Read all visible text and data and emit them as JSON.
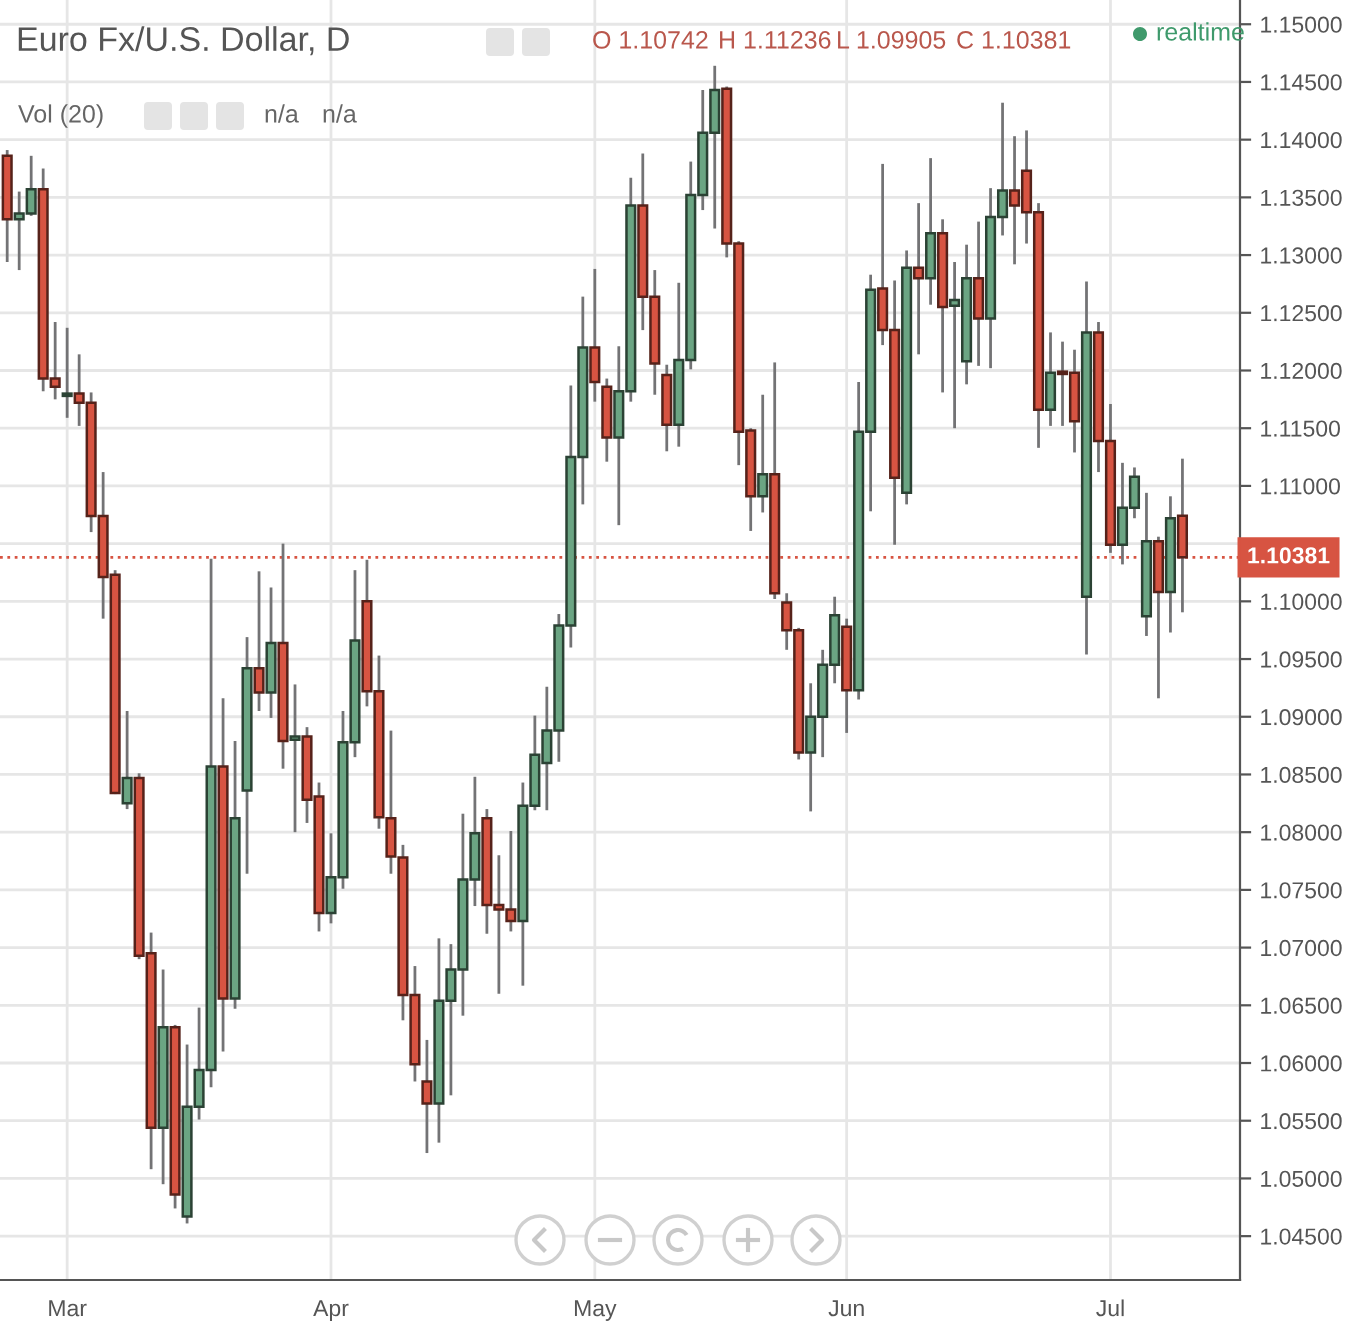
{
  "chart_data": {
    "type": "candlestick",
    "title": "Euro Fx/U.S. Dollar, D",
    "categories": [
      null,
      null,
      null,
      null,
      null,
      "Mar",
      null,
      null,
      null,
      null,
      null,
      null,
      null,
      null,
      null,
      null,
      null,
      null,
      null,
      null,
      null,
      null,
      null,
      null,
      null,
      null,
      null,
      "Apr",
      null,
      null,
      null,
      null,
      null,
      null,
      null,
      null,
      null,
      null,
      null,
      null,
      null,
      null,
      null,
      null,
      null,
      null,
      null,
      null,
      null,
      "May",
      null,
      null,
      null,
      null,
      null,
      null,
      null,
      null,
      null,
      null,
      null,
      null,
      null,
      null,
      null,
      null,
      null,
      null,
      null,
      null,
      "Jun",
      null,
      null,
      null,
      null,
      null,
      null,
      null,
      null,
      null,
      null,
      null,
      null,
      null,
      null,
      null,
      null,
      null,
      null,
      null,
      null,
      null,
      "Jul",
      null,
      null,
      null,
      null,
      null,
      null
    ],
    "ohlc": [
      [
        1.1386,
        1.1391,
        1.1294,
        1.1331
      ],
      [
        1.1331,
        1.1355,
        1.1287,
        1.1336
      ],
      [
        1.1336,
        1.1386,
        1.1334,
        1.1357
      ],
      [
        1.1357,
        1.1375,
        1.1182,
        1.1193
      ],
      [
        1.1193,
        1.1242,
        1.1175,
        1.1186
      ],
      [
        1.1178,
        1.1237,
        1.1159,
        1.118
      ],
      [
        1.118,
        1.1214,
        1.1152,
        1.1172
      ],
      [
        1.1172,
        1.1181,
        1.106,
        1.1074
      ],
      [
        1.1074,
        1.1112,
        1.0985,
        1.1021
      ],
      [
        1.1023,
        1.1027,
        1.0833,
        1.0834
      ],
      [
        1.0825,
        1.0905,
        1.082,
        1.0847
      ],
      [
        1.0847,
        1.0851,
        1.069,
        1.0693
      ],
      [
        1.0695,
        1.0713,
        1.0508,
        1.0544
      ],
      [
        1.0544,
        1.0681,
        1.0495,
        1.0631
      ],
      [
        1.0631,
        1.0633,
        1.0474,
        1.0486
      ],
      [
        1.0467,
        1.0616,
        1.0461,
        1.0562
      ],
      [
        1.0562,
        1.0648,
        1.0551,
        1.0594
      ],
      [
        1.0594,
        1.1037,
        1.0579,
        1.0857
      ],
      [
        1.0857,
        1.0916,
        1.061,
        1.0656
      ],
      [
        1.0656,
        1.0879,
        1.0647,
        1.0812
      ],
      [
        1.0836,
        1.0969,
        1.0764,
        1.0942
      ],
      [
        1.0942,
        1.1026,
        1.0905,
        1.0921
      ],
      [
        1.0921,
        1.1012,
        1.0899,
        1.0964
      ],
      [
        1.0964,
        1.105,
        1.0855,
        1.0879
      ],
      [
        1.088,
        1.0928,
        1.08,
        1.0883
      ],
      [
        1.0883,
        1.0891,
        1.0808,
        1.0828
      ],
      [
        1.0831,
        1.0843,
        1.0714,
        1.073
      ],
      [
        1.073,
        1.0799,
        1.0721,
        1.0761
      ],
      [
        1.0761,
        1.0905,
        1.0751,
        1.0878
      ],
      [
        1.0878,
        1.1027,
        1.0865,
        1.0966
      ],
      [
        1.1,
        1.1036,
        1.0909,
        1.0922
      ],
      [
        1.0922,
        1.0953,
        1.0803,
        1.0813
      ],
      [
        1.0812,
        1.0888,
        1.0764,
        1.0779
      ],
      [
        1.0778,
        1.0789,
        1.0637,
        1.0659
      ],
      [
        1.0659,
        1.0684,
        1.0584,
        1.0599
      ],
      [
        1.0584,
        1.062,
        1.0522,
        1.0565
      ],
      [
        1.0565,
        1.0708,
        1.0531,
        1.0654
      ],
      [
        1.0654,
        1.0703,
        1.0572,
        1.0681
      ],
      [
        1.0681,
        1.0816,
        1.0641,
        1.0759
      ],
      [
        1.0759,
        1.0848,
        1.0736,
        1.0799
      ],
      [
        1.0812,
        1.082,
        1.0712,
        1.0737
      ],
      [
        1.0737,
        1.078,
        1.066,
        1.0733
      ],
      [
        1.0733,
        1.0801,
        1.0714,
        1.0723
      ],
      [
        1.0723,
        1.0843,
        1.0667,
        1.0823
      ],
      [
        1.0823,
        1.0901,
        1.0819,
        1.0867
      ],
      [
        1.086,
        1.0926,
        1.0819,
        1.0888
      ],
      [
        1.0888,
        1.0989,
        1.0861,
        1.0979
      ],
      [
        1.0979,
        1.1187,
        1.096,
        1.1125
      ],
      [
        1.1125,
        1.1264,
        1.1084,
        1.122
      ],
      [
        1.122,
        1.1288,
        1.1173,
        1.119
      ],
      [
        1.1186,
        1.1193,
        1.1121,
        1.1142
      ],
      [
        1.1142,
        1.1221,
        1.1066,
        1.1182
      ],
      [
        1.1182,
        1.1367,
        1.1173,
        1.1343
      ],
      [
        1.1343,
        1.1388,
        1.1235,
        1.1264
      ],
      [
        1.1264,
        1.1287,
        1.1179,
        1.1206
      ],
      [
        1.1196,
        1.1205,
        1.113,
        1.1153
      ],
      [
        1.1153,
        1.1276,
        1.1134,
        1.1209
      ],
      [
        1.1209,
        1.1381,
        1.1201,
        1.1352
      ],
      [
        1.1352,
        1.1443,
        1.1339,
        1.1406
      ],
      [
        1.1406,
        1.1464,
        1.1323,
        1.1443
      ],
      [
        1.1444,
        1.1446,
        1.1298,
        1.131
      ],
      [
        1.131,
        1.1312,
        1.1118,
        1.1147
      ],
      [
        1.1148,
        1.115,
        1.1061,
        1.1091
      ],
      [
        1.1091,
        1.1179,
        1.1077,
        1.111
      ],
      [
        1.111,
        1.1207,
        1.1002,
        1.1007
      ],
      [
        1.0999,
        1.1007,
        1.0958,
        1.0975
      ],
      [
        1.0975,
        1.0977,
        1.0863,
        1.0869
      ],
      [
        1.0869,
        1.0929,
        1.0818,
        1.09
      ],
      [
        1.09,
        1.0958,
        1.0865,
        1.0945
      ],
      [
        1.0945,
        1.1004,
        1.0929,
        1.0988
      ],
      [
        1.0978,
        1.0985,
        1.0886,
        1.0923
      ],
      [
        1.0923,
        1.119,
        1.0915,
        1.1147
      ],
      [
        1.1147,
        1.1283,
        1.1078,
        1.127
      ],
      [
        1.1271,
        1.1379,
        1.1222,
        1.1235
      ],
      [
        1.1235,
        1.1278,
        1.1049,
        1.1107
      ],
      [
        1.1094,
        1.1304,
        1.1084,
        1.1289
      ],
      [
        1.1289,
        1.1345,
        1.1214,
        1.128
      ],
      [
        1.128,
        1.1384,
        1.1257,
        1.1319
      ],
      [
        1.1319,
        1.1331,
        1.1181,
        1.1255
      ],
      [
        1.1256,
        1.1294,
        1.115,
        1.1261
      ],
      [
        1.1208,
        1.1309,
        1.1188,
        1.128
      ],
      [
        1.128,
        1.1329,
        1.1204,
        1.1245
      ],
      [
        1.1245,
        1.1358,
        1.1202,
        1.1333
      ],
      [
        1.1333,
        1.1432,
        1.1317,
        1.1356
      ],
      [
        1.1356,
        1.1403,
        1.1292,
        1.1343
      ],
      [
        1.1373,
        1.1408,
        1.131,
        1.1337
      ],
      [
        1.1337,
        1.1345,
        1.1133,
        1.1166
      ],
      [
        1.1166,
        1.1233,
        1.1152,
        1.1198
      ],
      [
        1.1199,
        1.1225,
        1.1152,
        1.1197
      ],
      [
        1.1198,
        1.1218,
        1.1129,
        1.1156
      ],
      [
        1.1004,
        1.1277,
        1.0954,
        1.1233
      ],
      [
        1.1233,
        1.1242,
        1.1112,
        1.1139
      ],
      [
        1.1139,
        1.1171,
        1.1042,
        1.1049
      ],
      [
        1.1049,
        1.112,
        1.1032,
        1.1081
      ],
      [
        1.1081,
        1.1116,
        1.1072,
        1.1108
      ],
      [
        1.0987,
        1.1094,
        1.097,
        1.1052
      ],
      [
        1.1052,
        1.1056,
        1.0916,
        1.1008
      ],
      [
        1.1008,
        1.1091,
        1.0973,
        1.1072
      ],
      [
        1.10742,
        1.11236,
        1.09905,
        1.10381
      ]
    ],
    "colors": [
      "#d75442",
      "#6ba583",
      "#6ba583",
      "#d75442",
      "#d75442",
      "#6ba583",
      "#d75442",
      "#d75442",
      "#d75442",
      "#d75442",
      "#6ba583",
      "#d75442",
      "#d75442",
      "#6ba583",
      "#d75442",
      "#6ba583",
      "#6ba583",
      "#6ba583",
      "#d75442",
      "#6ba583",
      "#6ba583",
      "#d75442",
      "#6ba583",
      "#d75442",
      "#6ba583",
      "#d75442",
      "#d75442",
      "#6ba583",
      "#6ba583",
      "#6ba583",
      "#d75442",
      "#d75442",
      "#d75442",
      "#d75442",
      "#d75442",
      "#d75442",
      "#6ba583",
      "#6ba583",
      "#6ba583",
      "#6ba583",
      "#d75442",
      "#d75442",
      "#d75442",
      "#6ba583",
      "#6ba583",
      "#6ba583",
      "#6ba583",
      "#6ba583",
      "#6ba583",
      "#d75442",
      "#d75442",
      "#6ba583",
      "#6ba583",
      "#d75442",
      "#d75442",
      "#d75442",
      "#6ba583",
      "#6ba583",
      "#6ba583",
      "#6ba583",
      "#d75442",
      "#d75442",
      "#d75442",
      "#6ba583",
      "#d75442",
      "#d75442",
      "#d75442",
      "#6ba583",
      "#6ba583",
      "#6ba583",
      "#d75442",
      "#6ba583",
      "#6ba583",
      "#d75442",
      "#d75442",
      "#6ba583",
      "#d75442",
      "#6ba583",
      "#d75442",
      "#6ba583",
      "#6ba583",
      "#d75442",
      "#6ba583",
      "#6ba583",
      "#d75442",
      "#d75442",
      "#d75442",
      "#6ba583",
      "#d75442",
      "#d75442",
      "#6ba583",
      "#d75442",
      "#d75442",
      "#6ba583",
      "#6ba583",
      "#6ba583",
      "#d75442",
      "#6ba583",
      "#d75442"
    ],
    "ylim": [
      1.0412,
      1.1521
    ],
    "yticks": [
      {
        "value": 1.045,
        "label": "1.04500"
      },
      {
        "value": 1.05,
        "label": "1.05000"
      },
      {
        "value": 1.055,
        "label": "1.05500"
      },
      {
        "value": 1.06,
        "label": "1.06000"
      },
      {
        "value": 1.065,
        "label": "1.06500"
      },
      {
        "value": 1.07,
        "label": "1.07000"
      },
      {
        "value": 1.075,
        "label": "1.07500"
      },
      {
        "value": 1.08,
        "label": "1.08000"
      },
      {
        "value": 1.085,
        "label": "1.08500"
      },
      {
        "value": 1.09,
        "label": "1.09000"
      },
      {
        "value": 1.095,
        "label": "1.09500"
      },
      {
        "value": 1.1,
        "label": "1.10000"
      },
      {
        "value": 1.105,
        "label": null
      },
      {
        "value": 1.11,
        "label": "1.11000"
      },
      {
        "value": 1.115,
        "label": "1.11500"
      },
      {
        "value": 1.12,
        "label": "1.12000"
      },
      {
        "value": 1.125,
        "label": "1.12500"
      },
      {
        "value": 1.13,
        "label": "1.13000"
      },
      {
        "value": 1.135,
        "label": "1.13500"
      },
      {
        "value": 1.14,
        "label": "1.14000"
      },
      {
        "value": 1.145,
        "label": "1.14500"
      },
      {
        "value": 1.15,
        "label": "1.15000"
      }
    ],
    "grid": true,
    "ref_lines": [
      {
        "axis": "y",
        "value": 1.10381,
        "label": "1.10381",
        "color": "#d75442",
        "line_style": "dotted"
      }
    ],
    "annotations": [
      "O 1.10742",
      "H 1.11236",
      "L 1.09905",
      "C 1.10381",
      "realtime",
      "Vol (20)",
      "n/a",
      "n/a"
    ]
  }
}
